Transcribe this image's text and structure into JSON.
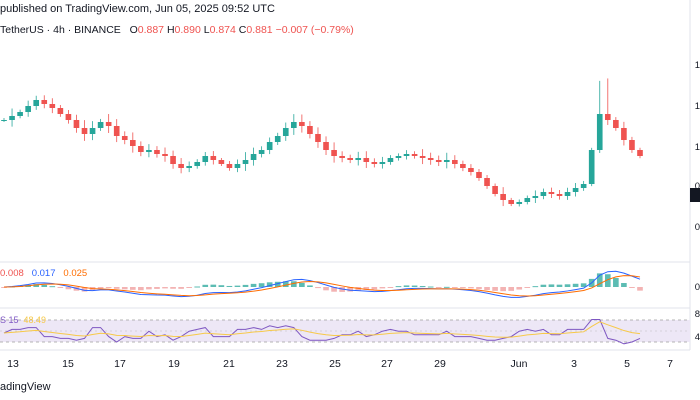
{
  "header": {
    "published_text": "published on TradingView.com, Jun 05, 2025 09:52 UTC"
  },
  "symbol_line": {
    "symbol": "TetherUS · 4h · BINANCE",
    "o_label": "O",
    "o_value": "0.887",
    "h_label": "H",
    "h_value": "0.890",
    "l_label": "L",
    "l_value": "0.874",
    "c_label": "C",
    "c_value": "0.881",
    "change": "−0.007 (−0.79%)"
  },
  "macd_legend": {
    "v1": "0.008",
    "v2": "0.017",
    "v3": "0.025"
  },
  "rsi_legend": {
    "prefix": "S 15",
    "value": "48.49"
  },
  "x_axis_labels": [
    "13",
    "15",
    "17",
    "19",
    "21",
    "23",
    "25",
    "27",
    "29",
    "Jun",
    "3",
    "5",
    "7"
  ],
  "right_edge_labels": [
    "1",
    "1",
    "1",
    "0",
    "0",
    "0",
    "8",
    "4"
  ],
  "footer": {
    "brand": "adingView"
  },
  "colors": {
    "up": "#26a69a",
    "down": "#ef5350",
    "macd_line": "#2962ff",
    "signal_line": "#ff6d00",
    "rsi_line": "#7e57c2",
    "rsi_ma": "#f7c948",
    "rsi_band": "#ede7f6"
  },
  "chart_data": {
    "type": "candlestick",
    "x_axis_labels": [
      "13",
      "15",
      "17",
      "19",
      "21",
      "23",
      "25",
      "27",
      "29",
      "Jun",
      "3",
      "5",
      "7"
    ],
    "ohlc_last": {
      "open": 0.887,
      "high": 0.89,
      "low": 0.874,
      "close": 0.881
    },
    "closes_relative": [
      0.6,
      0.62,
      0.64,
      0.67,
      0.7,
      0.68,
      0.66,
      0.63,
      0.6,
      0.56,
      0.53,
      0.56,
      0.59,
      0.57,
      0.52,
      0.5,
      0.47,
      0.44,
      0.45,
      0.43,
      0.42,
      0.38,
      0.36,
      0.37,
      0.39,
      0.42,
      0.4,
      0.38,
      0.36,
      0.38,
      0.4,
      0.43,
      0.45,
      0.49,
      0.52,
      0.56,
      0.59,
      0.57,
      0.53,
      0.49,
      0.45,
      0.42,
      0.41,
      0.4,
      0.41,
      0.39,
      0.38,
      0.39,
      0.41,
      0.42,
      0.43,
      0.42,
      0.41,
      0.4,
      0.39,
      0.4,
      0.38,
      0.36,
      0.34,
      0.31,
      0.27,
      0.23,
      0.2,
      0.18,
      0.19,
      0.21,
      0.22,
      0.24,
      0.23,
      0.22,
      0.24,
      0.26,
      0.28,
      0.45,
      0.63,
      0.6,
      0.56,
      0.5,
      0.45,
      0.42
    ]
  }
}
